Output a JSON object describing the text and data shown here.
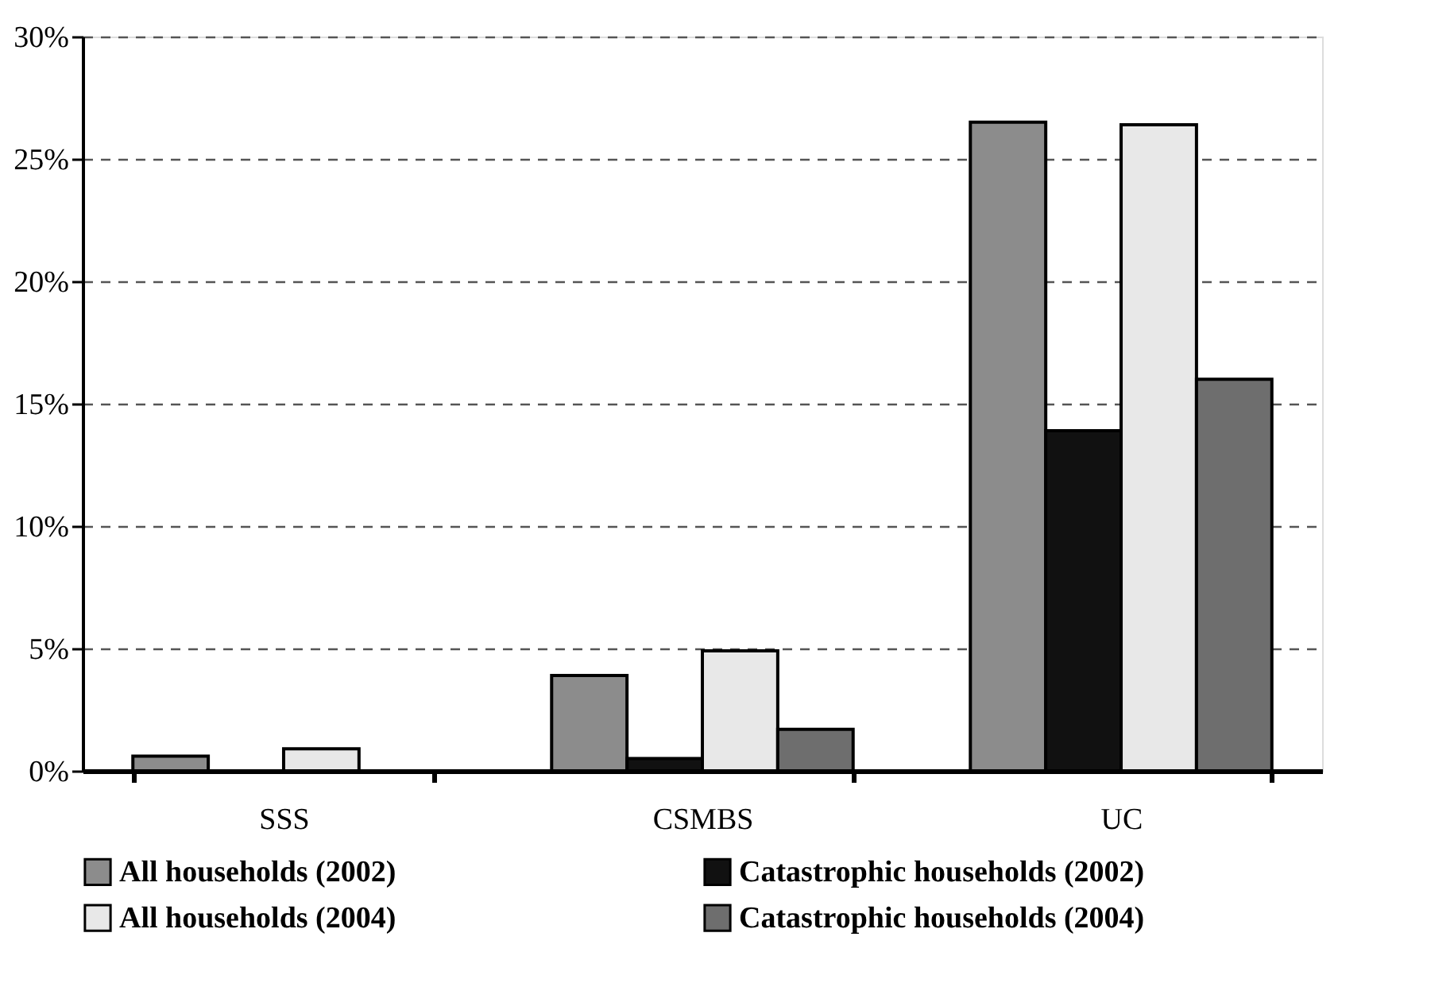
{
  "chart_data": {
    "type": "bar",
    "categories": [
      "SSS",
      "CSMBS",
      "UC"
    ],
    "series": [
      {
        "name": "All households (2002)",
        "color": "#8c8c8c",
        "values": [
          0.6,
          3.9,
          26.5
        ]
      },
      {
        "name": "Catastrophic households (2002)",
        "color": "#111111",
        "values": [
          null,
          0.5,
          13.9
        ]
      },
      {
        "name": "All households (2004)",
        "color": "#e8e8e8",
        "values": [
          0.9,
          4.9,
          26.4
        ]
      },
      {
        "name": "Catastrophic households (2004)",
        "color": "#6e6e6e",
        "values": [
          null,
          1.7,
          16.0
        ]
      }
    ],
    "ylim": [
      0,
      30
    ],
    "yticks": [
      {
        "value": 0,
        "label": "0%"
      },
      {
        "value": 5,
        "label": "5%"
      },
      {
        "value": 10,
        "label": "10%"
      },
      {
        "value": 15,
        "label": "15%"
      },
      {
        "value": 20,
        "label": "20%"
      },
      {
        "value": 25,
        "label": "25%"
      },
      {
        "value": 30,
        "label": "30%"
      }
    ],
    "grid": "y",
    "legend": "bottom"
  }
}
